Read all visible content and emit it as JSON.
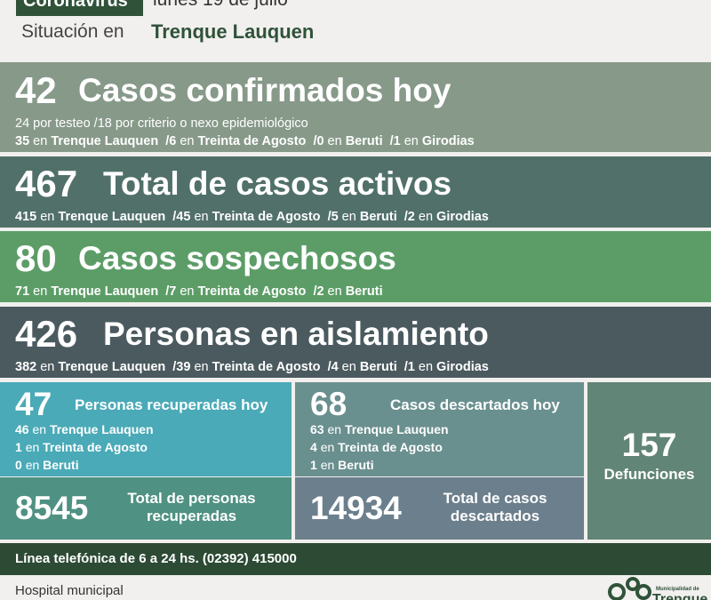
{
  "header": {
    "badge": "Coronavirus",
    "date": "lunes 19 de julio",
    "situacion_label": "Situación en",
    "city": "Trenque Lauquen"
  },
  "confirmados": {
    "number": "42",
    "title": "Casos confirmados hoy",
    "line1": "24 por testeo  /18 por criterio o nexo epidemiológico",
    "line2": [
      {
        "n": "35",
        "place": "Trenque Lauquen"
      },
      {
        "n": "/6",
        "place": "Treinta de Agosto"
      },
      {
        "n": "/0",
        "place": "Beruti"
      },
      {
        "n": "/1",
        "place": "Girodias"
      }
    ]
  },
  "activos": {
    "number": "467",
    "title": "Total de casos activos",
    "line": [
      {
        "n": "415",
        "place": "Trenque Lauquen"
      },
      {
        "n": "/45",
        "place": "Treinta de Agosto"
      },
      {
        "n": "/5",
        "place": "Beruti"
      },
      {
        "n": "/2",
        "place": "Girodias"
      }
    ]
  },
  "sospechosos": {
    "number": "80",
    "title": "Casos sospechosos",
    "line": [
      {
        "n": "71",
        "place": "Trenque Lauquen"
      },
      {
        "n": "/7",
        "place": "Treinta de Agosto"
      },
      {
        "n": "/2",
        "place": "Beruti"
      }
    ]
  },
  "aislamiento": {
    "number": "426",
    "title": "Personas en aislamiento",
    "line": [
      {
        "n": "382",
        "place": "Trenque Lauquen"
      },
      {
        "n": "/39",
        "place": "Treinta de Agosto"
      },
      {
        "n": "/4",
        "place": "Beruti"
      },
      {
        "n": "/1",
        "place": "Girodias"
      }
    ]
  },
  "en": "en",
  "recuperados": {
    "number": "47",
    "title": "Personas recuperadas hoy",
    "items": [
      {
        "n": "46",
        "place": "Trenque Lauquen"
      },
      {
        "n": "1",
        "place": "Treinta de Agosto"
      },
      {
        "n": "0",
        "place": "Beruti"
      }
    ],
    "total_number": "8545",
    "total_label_1": "Total de personas",
    "total_label_2": "recuperadas"
  },
  "descartados": {
    "number": "68",
    "title": "Casos descartados hoy",
    "items": [
      {
        "n": "63",
        "place": "Trenque Lauquen"
      },
      {
        "n": "4",
        "place": "Treinta de Agosto"
      },
      {
        "n": "1",
        "place": "Beruti"
      }
    ],
    "total_number": "14934",
    "total_label_1": "Total de casos",
    "total_label_2": "descartados"
  },
  "defunciones": {
    "number": "157",
    "label": "Defunciones"
  },
  "telefono": "Línea telefónica de 6 a 24 hs. (02392) 415000",
  "hospital": "Hospital municipal",
  "logo": {
    "small": "Municipalidad de",
    "big": "Trenque"
  },
  "colors": {
    "dark_green": "#2f5239",
    "confirmados": "#879989",
    "activos": "#51706a",
    "sospechosos": "#5c9d67",
    "aislamiento": "#4b5a5f",
    "recuperados": "#4aaab7",
    "descartados": "#6a8f8f",
    "defunciones": "#618576"
  },
  "icons": [
    "municipal-logo-icon"
  ]
}
